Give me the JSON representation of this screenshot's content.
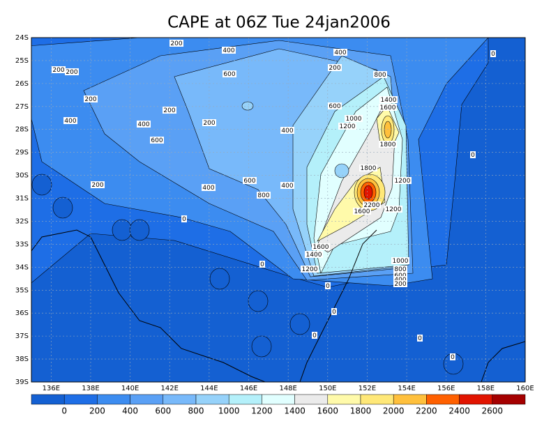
{
  "chart_data": {
    "type": "contour-map",
    "title": "CAPE at 06Z Tue 24jan2006",
    "xlim": [
      135,
      160
    ],
    "ylim": [
      -24,
      -39
    ],
    "xticks": [
      {
        "value": 136,
        "label": "136E"
      },
      {
        "value": 138,
        "label": "138E"
      },
      {
        "value": 140,
        "label": "140E"
      },
      {
        "value": 142,
        "label": "142E"
      },
      {
        "value": 144,
        "label": "144E"
      },
      {
        "value": 146,
        "label": "146E"
      },
      {
        "value": 148,
        "label": "148E"
      },
      {
        "value": 150,
        "label": "150E"
      },
      {
        "value": 152,
        "label": "152E"
      },
      {
        "value": 154,
        "label": "154E"
      },
      {
        "value": 156,
        "label": "156E"
      },
      {
        "value": 158,
        "label": "158E"
      },
      {
        "value": 160,
        "label": "160E"
      }
    ],
    "yticks": [
      {
        "value": -24,
        "label": "24S"
      },
      {
        "value": -25,
        "label": "25S"
      },
      {
        "value": -26,
        "label": "26S"
      },
      {
        "value": -27,
        "label": "27S"
      },
      {
        "value": -28,
        "label": "28S"
      },
      {
        "value": -29,
        "label": "29S"
      },
      {
        "value": -30,
        "label": "30S"
      },
      {
        "value": -31,
        "label": "31S"
      },
      {
        "value": -32,
        "label": "32S"
      },
      {
        "value": -33,
        "label": "33S"
      },
      {
        "value": -34,
        "label": "34S"
      },
      {
        "value": -35,
        "label": "35S"
      },
      {
        "value": -36,
        "label": "36S"
      },
      {
        "value": -37,
        "label": "37S"
      },
      {
        "value": -38,
        "label": "38S"
      },
      {
        "value": -39,
        "label": "39S"
      }
    ],
    "grid": true,
    "colorbar": {
      "labels": [
        0,
        200,
        400,
        600,
        800,
        1000,
        1200,
        1400,
        1600,
        1800,
        2000,
        2200,
        2400,
        2600
      ],
      "colors": [
        "#1460d2",
        "#1e6ee6",
        "#3c8cf0",
        "#5aa0f5",
        "#78b9fa",
        "#96d2fa",
        "#b4f0fa",
        "#e1ffff",
        "#ebebeb",
        "#fffaaa",
        "#ffe878",
        "#ffc03c",
        "#ff6000",
        "#e11400",
        "#a50000"
      ]
    },
    "contour_labels": [
      200,
      400,
      400,
      0,
      200,
      200,
      600,
      200,
      800,
      200,
      1400,
      1600,
      600,
      200,
      1000,
      1200,
      400,
      400,
      200,
      400,
      600,
      1800,
      0,
      1800,
      600,
      200,
      400,
      400,
      1200,
      800,
      2200,
      1600,
      1200,
      0,
      1600,
      1400,
      0,
      1000,
      1200,
      800,
      600,
      400,
      200,
      0,
      0,
      0,
      0,
      0
    ]
  }
}
